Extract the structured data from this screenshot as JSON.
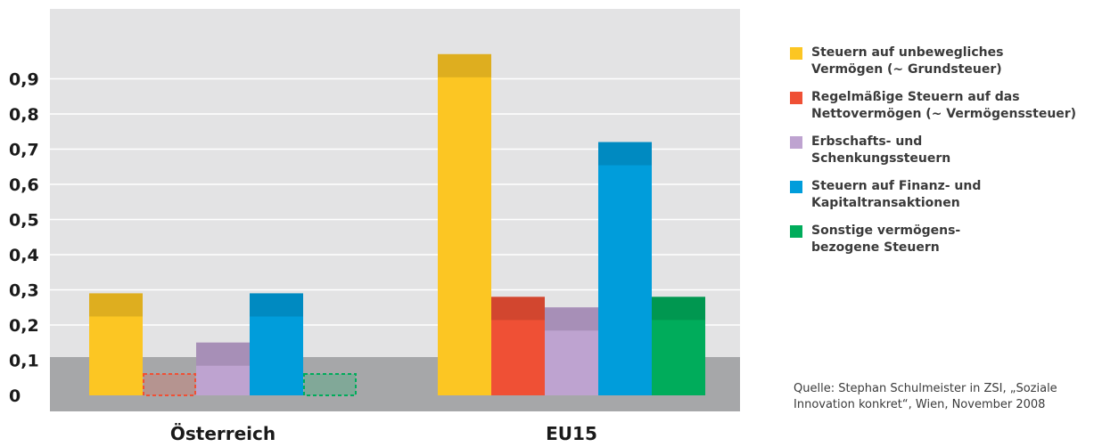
{
  "chart_data": {
    "type": "bar",
    "categories": [
      "Österreich",
      "EU15"
    ],
    "series": [
      {
        "name": "Steuern auf unbewegliches Vermögen (~ Grundsteuer)",
        "color": "#fcc623",
        "values": [
          0.29,
          0.97
        ]
      },
      {
        "name": "Regelmäßige Steuern auf das Nettovermögen (~ Vermögenssteuer)",
        "color": "#ef5035",
        "values": [
          0.0,
          0.28
        ]
      },
      {
        "name": "Erbschafts- und Schenkungssteuern",
        "color": "#bea3d0",
        "values": [
          0.15,
          0.25
        ]
      },
      {
        "name": "Steuern auf Finanz- und Kapitaltransaktionen",
        "color": "#009ddb",
        "values": [
          0.29,
          0.72
        ]
      },
      {
        "name": "Sonstige vermögensbezogene Steuern",
        "color": "#00ac5b",
        "values": [
          0.0,
          0.28
        ]
      }
    ],
    "ylim": [
      0,
      1.0
    ],
    "yticks": [
      "0",
      "0,1",
      "0,2",
      "0,3",
      "0,4",
      "0,5",
      "0,6",
      "0,7",
      "0,8",
      "0,9"
    ],
    "grid": true,
    "legend_position": "right"
  },
  "legend": {
    "items": [
      {
        "line1": "Steuern auf unbewegliches",
        "line2": "Vermögen (~ Grundsteuer)",
        "color": "#fcc623"
      },
      {
        "line1": "Regelmäßige Steuern auf das",
        "line2": "Nettovermögen (~ Vermögenssteuer)",
        "color": "#ef5035"
      },
      {
        "line1": "Erbschafts- und",
        "line2": "Schenkungssteuern",
        "color": "#bea3d0"
      },
      {
        "line1": "Steuern auf Finanz- und",
        "line2": "Kapitaltransaktionen",
        "color": "#009ddb"
      },
      {
        "line1": "Sonstige vermögens-",
        "line2": "bezogene Steuern",
        "color": "#00ac5b"
      }
    ]
  },
  "source": {
    "line1": "Quelle: Stephan Schulmeister in ZSI, „Soziale",
    "line2": "Innovation konkret“, Wien, November 2008"
  }
}
